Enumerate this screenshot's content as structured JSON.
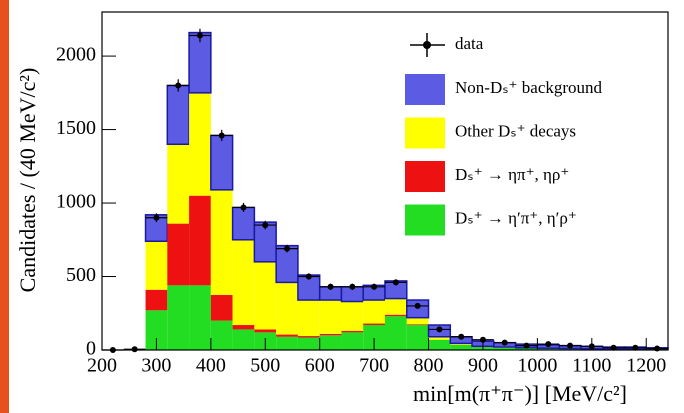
{
  "chart_data": {
    "type": "histogram",
    "xlabel": "min[m(π⁺π⁻)] [MeV/c²]",
    "ylabel": "Candidates / (40 MeV/c²)",
    "bins": [
      280,
      320,
      360,
      400,
      440,
      480,
      520,
      560,
      600,
      640,
      680,
      720,
      760,
      800,
      840,
      880,
      920,
      960,
      1000,
      1040,
      1080,
      1120,
      1160,
      1200,
      1240
    ],
    "series": [
      {
        "name": "Non-Dₛ⁺ background",
        "color": "#5b5be3",
        "values": [
          180,
          400,
          410,
          370,
          220,
          270,
          250,
          170,
          90,
          100,
          100,
          120,
          120,
          80,
          45,
          35,
          30,
          25,
          23,
          20,
          17,
          14,
          14,
          10
        ]
      },
      {
        "name": "Other Dₛ⁺ decays",
        "color": "#ffff00",
        "values": [
          330,
          540,
          700,
          715,
          580,
          460,
          355,
          245,
          230,
          200,
          160,
          110,
          45,
          20,
          10,
          5,
          5,
          3,
          2,
          2,
          2,
          1,
          1,
          0
        ]
      },
      {
        "name": "Dₛ⁺ → ηπ⁺, ηρ⁺",
        "color": "#ee1111",
        "values": [
          140,
          420,
          610,
          175,
          30,
          20,
          15,
          10,
          10,
          10,
          10,
          10,
          5,
          0,
          0,
          0,
          0,
          0,
          0,
          0,
          0,
          0,
          0,
          0
        ]
      },
      {
        "name": "Dₛ⁺ → η′π⁺, η′ρ⁺",
        "color": "#22dd22",
        "values": [
          270,
          440,
          440,
          200,
          140,
          120,
          90,
          85,
          100,
          120,
          170,
          230,
          170,
          70,
          35,
          20,
          15,
          12,
          10,
          8,
          6,
          5,
          5,
          5
        ]
      }
    ],
    "data": {
      "name": "data",
      "color": "#000000",
      "x": [
        220,
        260,
        300,
        340,
        380,
        420,
        460,
        500,
        540,
        580,
        620,
        660,
        700,
        740,
        780,
        820,
        860,
        900,
        940,
        980,
        1020,
        1060,
        1100,
        1140,
        1180,
        1220
      ],
      "values": [
        0,
        5,
        900,
        1800,
        2140,
        1460,
        970,
        850,
        690,
        500,
        430,
        430,
        430,
        460,
        300,
        140,
        90,
        70,
        50,
        30,
        40,
        30,
        25,
        15,
        15,
        10
      ],
      "errors": [
        0,
        2,
        30,
        42,
        46,
        38,
        31,
        29,
        26,
        22,
        21,
        21,
        21,
        21,
        17,
        12,
        9,
        8,
        7,
        5,
        6,
        5,
        5,
        4,
        4,
        3
      ]
    },
    "xlim": [
      200,
      1240
    ],
    "xticks": [
      200,
      300,
      400,
      500,
      600,
      700,
      800,
      900,
      1000,
      1100,
      1200
    ],
    "ylim": [
      0,
      2300
    ],
    "yticks": [
      0,
      500,
      1000,
      1500,
      2000
    ],
    "legend": "upper right"
  }
}
